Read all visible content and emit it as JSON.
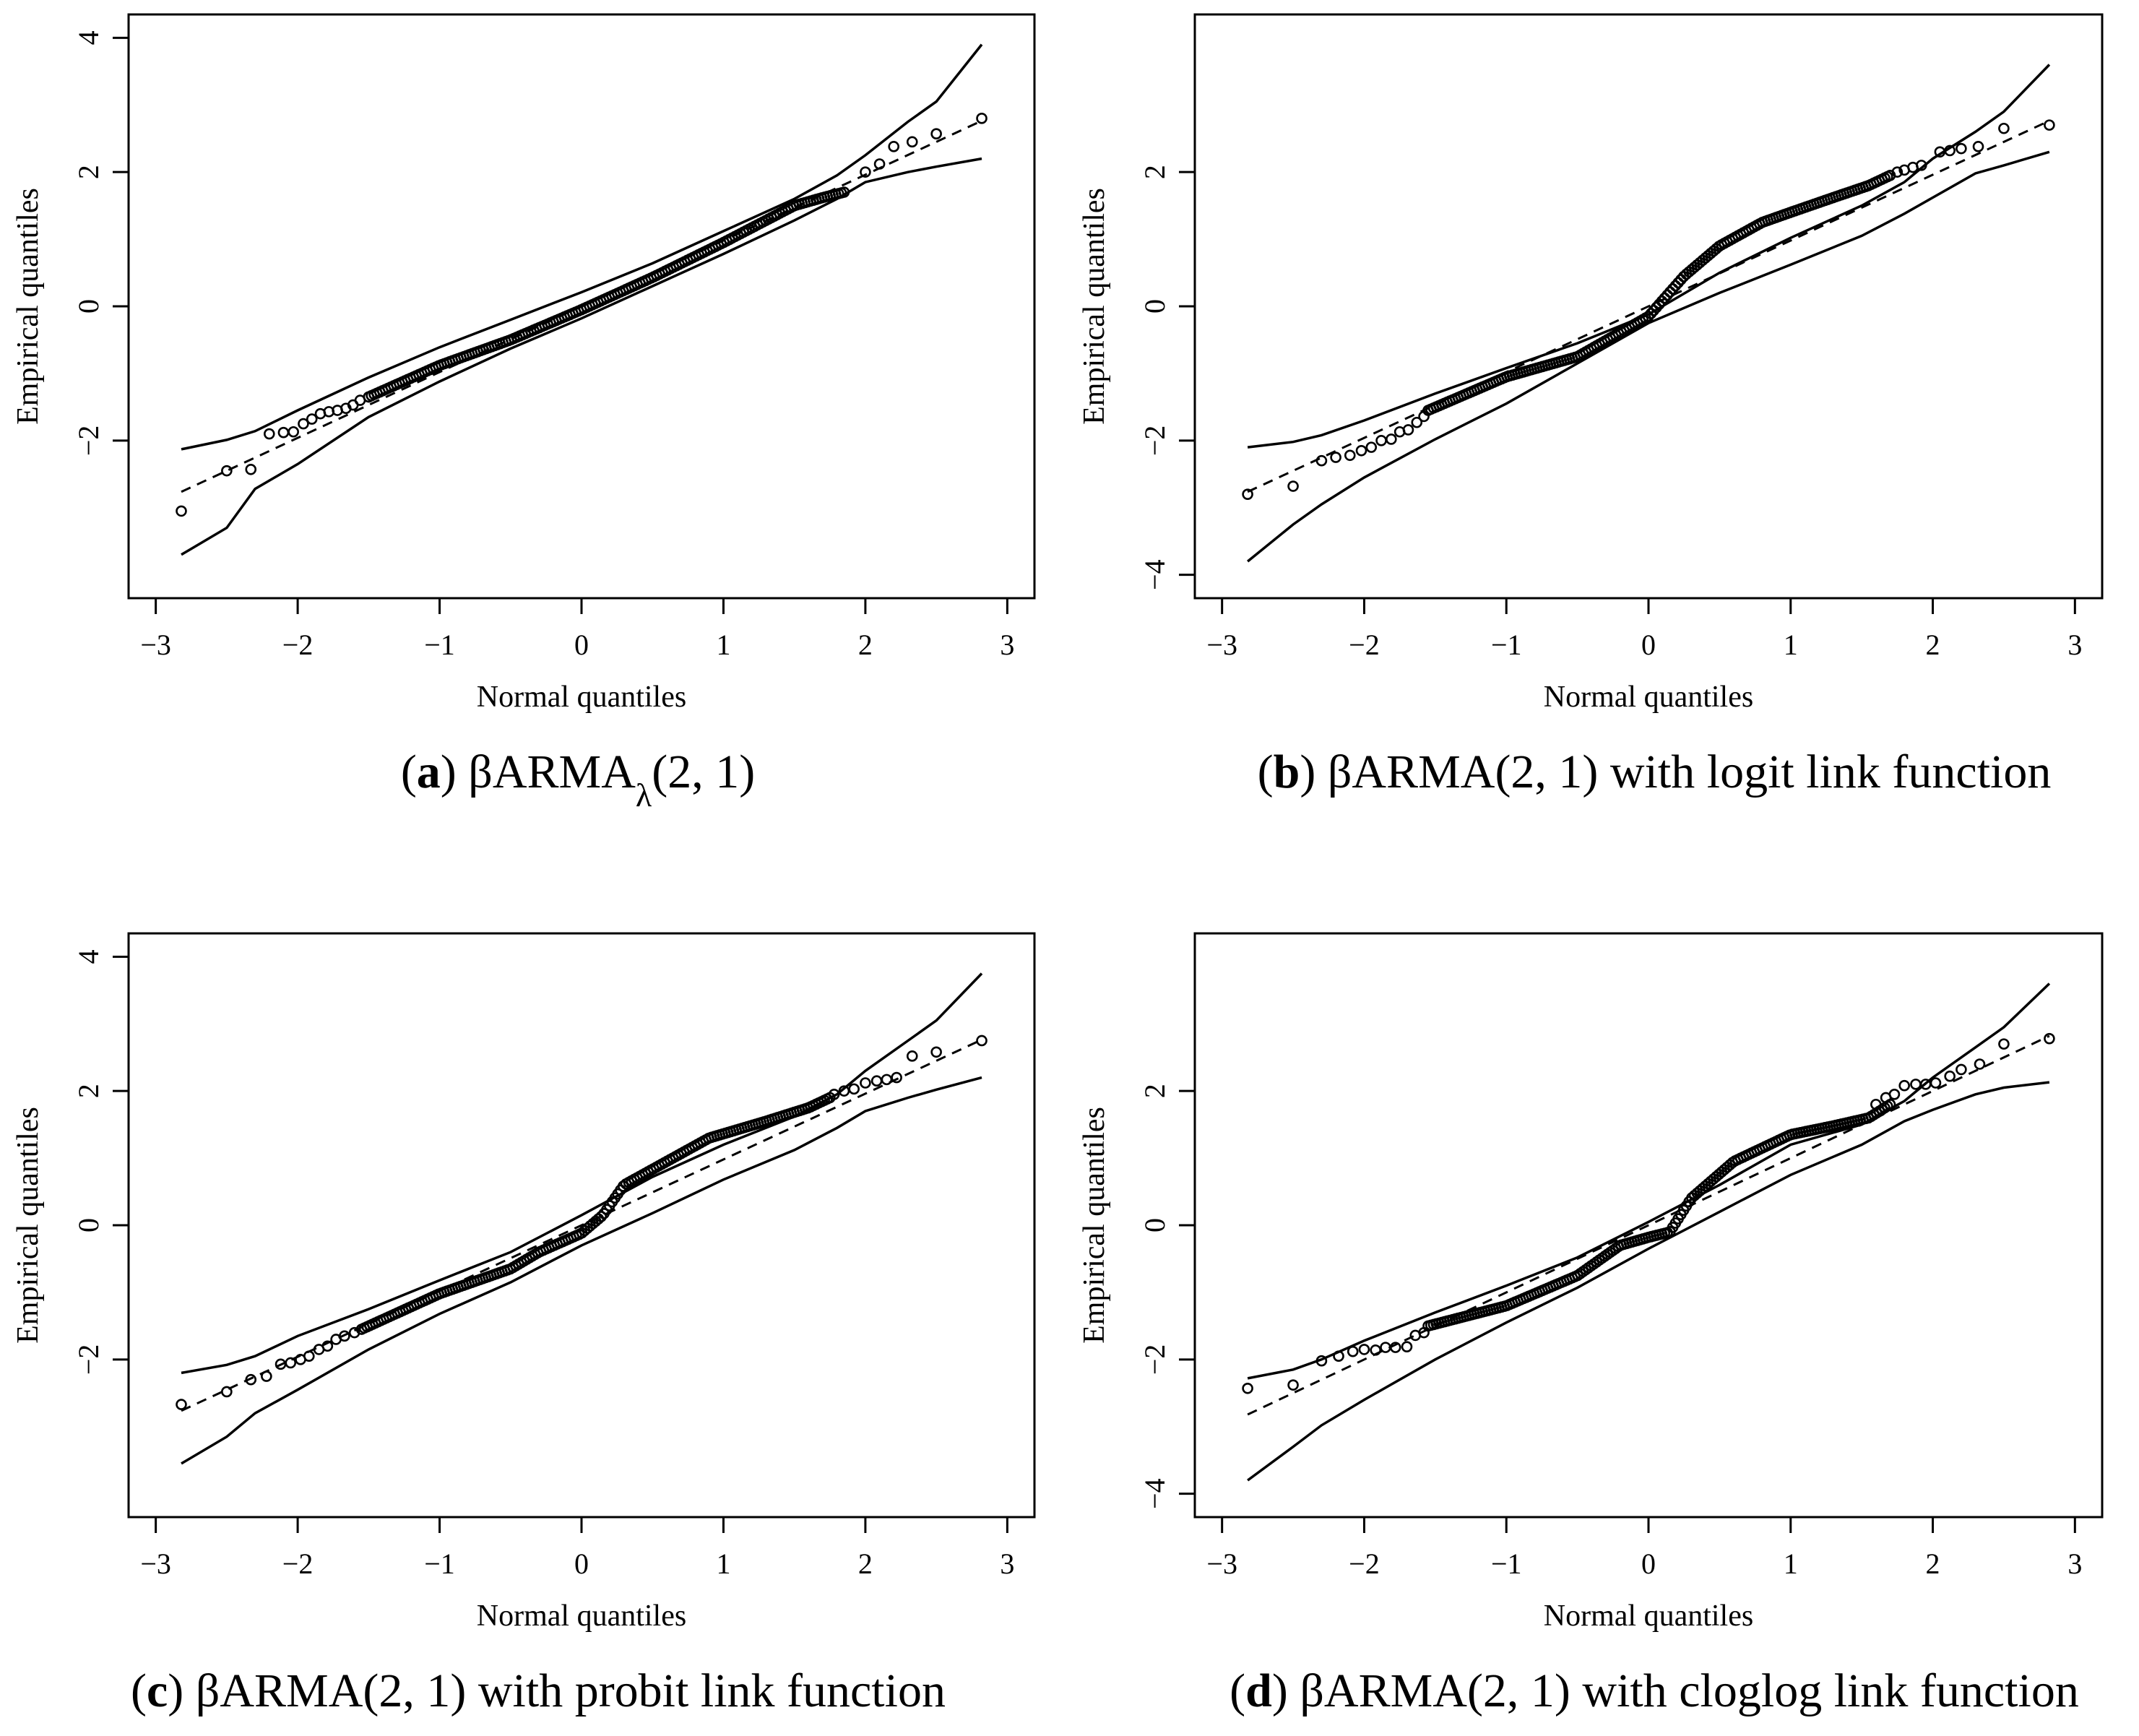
{
  "chart_data": [
    {
      "type": "scatter",
      "panel": "a",
      "caption_letter": "a",
      "caption_text": "βARMAλ(2, 1)",
      "caption_base": "βARMA",
      "caption_sub": "λ",
      "caption_args": "(2, 1)",
      "caption_suffix": "",
      "xlabel": "Normal quantiles",
      "ylabel": "Empirical quantiles",
      "xlim": [
        -3,
        3
      ],
      "ylim": [
        -4,
        4
      ],
      "xticks": [
        "−3",
        "−2",
        "−1",
        "0",
        "1",
        "2",
        "3"
      ],
      "yticks": [
        "−2",
        "0",
        "2",
        "4"
      ],
      "ytick_values": [
        -2,
        0,
        2,
        4
      ],
      "reference_line": {
        "intercept": 0.0,
        "slope": 0.98
      },
      "envelope_upper": [
        [
          -2.82,
          -2.13
        ],
        [
          -2.5,
          -1.99
        ],
        [
          -2.3,
          -1.86
        ],
        [
          -2.0,
          -1.55
        ],
        [
          -1.5,
          -1.06
        ],
        [
          -1.0,
          -0.61
        ],
        [
          -0.5,
          -0.2
        ],
        [
          0.0,
          0.21
        ],
        [
          0.5,
          0.64
        ],
        [
          1.0,
          1.12
        ],
        [
          1.5,
          1.6
        ],
        [
          1.8,
          1.95
        ],
        [
          2.0,
          2.25
        ],
        [
          2.3,
          2.75
        ],
        [
          2.5,
          3.05
        ],
        [
          2.82,
          3.9
        ]
      ],
      "envelope_lower": [
        [
          -2.82,
          -3.7
        ],
        [
          -2.5,
          -3.3
        ],
        [
          -2.3,
          -2.72
        ],
        [
          -2.0,
          -2.35
        ],
        [
          -1.5,
          -1.65
        ],
        [
          -1.0,
          -1.12
        ],
        [
          -0.5,
          -0.63
        ],
        [
          0.0,
          -0.18
        ],
        [
          0.5,
          0.3
        ],
        [
          1.0,
          0.78
        ],
        [
          1.5,
          1.28
        ],
        [
          1.8,
          1.6
        ],
        [
          2.0,
          1.85
        ],
        [
          2.3,
          2.0
        ],
        [
          2.5,
          2.08
        ],
        [
          2.82,
          2.2
        ]
      ],
      "empirical_trend": [
        [
          -1.5,
          -1.35
        ],
        [
          -1.0,
          -0.88
        ],
        [
          -0.5,
          -0.5
        ],
        [
          0.0,
          -0.05
        ],
        [
          0.5,
          0.43
        ],
        [
          1.0,
          0.95
        ],
        [
          1.3,
          1.28
        ],
        [
          1.5,
          1.5
        ],
        [
          1.7,
          1.62
        ],
        [
          1.85,
          1.7
        ]
      ],
      "points": [
        [
          -2.82,
          -3.05
        ],
        [
          -2.5,
          -2.45
        ],
        [
          -2.33,
          -2.43
        ],
        [
          -2.2,
          -1.9
        ],
        [
          -2.1,
          -1.88
        ],
        [
          -2.03,
          -1.87
        ],
        [
          -1.96,
          -1.75
        ],
        [
          -1.9,
          -1.68
        ],
        [
          -1.84,
          -1.6
        ],
        [
          -1.78,
          -1.57
        ],
        [
          -1.72,
          -1.55
        ],
        [
          -1.66,
          -1.52
        ],
        [
          -1.61,
          -1.47
        ],
        [
          -1.56,
          -1.4
        ],
        [
          -1.5,
          -1.35
        ],
        [
          2.0,
          2.0
        ],
        [
          2.1,
          2.12
        ],
        [
          2.2,
          2.38
        ],
        [
          2.33,
          2.45
        ],
        [
          2.5,
          2.57
        ],
        [
          2.82,
          2.8
        ]
      ]
    },
    {
      "type": "scatter",
      "panel": "b",
      "caption_letter": "b",
      "caption_text": "βARMA(2, 1) with logit link function",
      "caption_base": "βARMA",
      "caption_sub": "",
      "caption_args": "(2, 1)",
      "caption_suffix": " with logit link function",
      "xlabel": "Normal quantiles",
      "ylabel": "Empirical quantiles",
      "xlim": [
        -3,
        3
      ],
      "ylim": [
        -4,
        4
      ],
      "xticks": [
        "−3",
        "−2",
        "−1",
        "0",
        "1",
        "2",
        "3"
      ],
      "yticks": [
        "−4",
        "−2",
        "0",
        "2"
      ],
      "ytick_values": [
        -4,
        -2,
        0,
        2
      ],
      "reference_line": {
        "intercept": 0.0,
        "slope": 0.98
      },
      "envelope_upper": [
        [
          -2.82,
          -2.1
        ],
        [
          -2.5,
          -2.02
        ],
        [
          -2.3,
          -1.92
        ],
        [
          -2.0,
          -1.7
        ],
        [
          -1.5,
          -1.3
        ],
        [
          -1.0,
          -0.92
        ],
        [
          -0.5,
          -0.55
        ],
        [
          0.0,
          -0.12
        ],
        [
          0.5,
          0.5
        ],
        [
          1.0,
          1.02
        ],
        [
          1.5,
          1.5
        ],
        [
          1.8,
          1.85
        ],
        [
          2.0,
          2.2
        ],
        [
          2.3,
          2.6
        ],
        [
          2.5,
          2.9
        ],
        [
          2.82,
          3.6
        ]
      ],
      "envelope_lower": [
        [
          -2.82,
          -3.8
        ],
        [
          -2.5,
          -3.25
        ],
        [
          -2.3,
          -2.95
        ],
        [
          -2.0,
          -2.55
        ],
        [
          -1.5,
          -1.98
        ],
        [
          -1.0,
          -1.45
        ],
        [
          -0.5,
          -0.85
        ],
        [
          0.0,
          -0.25
        ],
        [
          0.5,
          0.2
        ],
        [
          1.0,
          0.62
        ],
        [
          1.5,
          1.05
        ],
        [
          1.8,
          1.38
        ],
        [
          2.0,
          1.62
        ],
        [
          2.3,
          1.98
        ],
        [
          2.5,
          2.1
        ],
        [
          2.82,
          2.3
        ]
      ],
      "empirical_trend": [
        [
          -1.55,
          -1.55
        ],
        [
          -1.0,
          -1.05
        ],
        [
          -0.5,
          -0.75
        ],
        [
          0.0,
          -0.15
        ],
        [
          0.25,
          0.45
        ],
        [
          0.5,
          0.9
        ],
        [
          0.8,
          1.25
        ],
        [
          1.0,
          1.4
        ],
        [
          1.3,
          1.62
        ],
        [
          1.55,
          1.8
        ],
        [
          1.7,
          1.95
        ]
      ],
      "points": [
        [
          -2.82,
          -2.8
        ],
        [
          -2.5,
          -2.68
        ],
        [
          -2.3,
          -2.3
        ],
        [
          -2.2,
          -2.25
        ],
        [
          -2.1,
          -2.22
        ],
        [
          -2.02,
          -2.15
        ],
        [
          -1.95,
          -2.1
        ],
        [
          -1.88,
          -2.0
        ],
        [
          -1.81,
          -1.98
        ],
        [
          -1.75,
          -1.87
        ],
        [
          -1.69,
          -1.84
        ],
        [
          -1.63,
          -1.73
        ],
        [
          -1.58,
          -1.64
        ],
        [
          1.75,
          2.0
        ],
        [
          1.8,
          2.03
        ],
        [
          1.86,
          2.07
        ],
        [
          1.92,
          2.1
        ],
        [
          2.05,
          2.3
        ],
        [
          2.12,
          2.32
        ],
        [
          2.2,
          2.35
        ],
        [
          2.32,
          2.38
        ],
        [
          2.5,
          2.65
        ],
        [
          2.82,
          2.7
        ]
      ]
    },
    {
      "type": "scatter",
      "panel": "c",
      "caption_letter": "c",
      "caption_text": "βARMA(2, 1) with probit link function",
      "caption_base": "βARMA",
      "caption_sub": "",
      "caption_args": "(2, 1)",
      "caption_suffix": " with probit link function",
      "xlabel": "Normal quantiles",
      "ylabel": "Empirical quantiles",
      "xlim": [
        -3,
        3
      ],
      "ylim": [
        -4,
        4
      ],
      "xticks": [
        "−3",
        "−2",
        "−1",
        "0",
        "1",
        "2",
        "3"
      ],
      "yticks": [
        "−2",
        "0",
        "2",
        "4"
      ],
      "ytick_values": [
        -2,
        0,
        2,
        4
      ],
      "reference_line": {
        "intercept": 0.0,
        "slope": 0.98
      },
      "envelope_upper": [
        [
          -2.82,
          -2.2
        ],
        [
          -2.5,
          -2.08
        ],
        [
          -2.3,
          -1.95
        ],
        [
          -2.0,
          -1.65
        ],
        [
          -1.5,
          -1.25
        ],
        [
          -1.0,
          -0.82
        ],
        [
          -0.5,
          -0.4
        ],
        [
          0.0,
          0.15
        ],
        [
          0.5,
          0.72
        ],
        [
          1.0,
          1.2
        ],
        [
          1.5,
          1.62
        ],
        [
          1.8,
          1.95
        ],
        [
          2.0,
          2.3
        ],
        [
          2.3,
          2.75
        ],
        [
          2.5,
          3.05
        ],
        [
          2.82,
          3.75
        ]
      ],
      "envelope_lower": [
        [
          -2.82,
          -3.55
        ],
        [
          -2.5,
          -3.15
        ],
        [
          -2.3,
          -2.8
        ],
        [
          -2.0,
          -2.45
        ],
        [
          -1.5,
          -1.85
        ],
        [
          -1.0,
          -1.32
        ],
        [
          -0.5,
          -0.85
        ],
        [
          0.0,
          -0.3
        ],
        [
          0.5,
          0.18
        ],
        [
          1.0,
          0.68
        ],
        [
          1.5,
          1.12
        ],
        [
          1.8,
          1.45
        ],
        [
          2.0,
          1.7
        ],
        [
          2.3,
          1.9
        ],
        [
          2.5,
          2.02
        ],
        [
          2.82,
          2.2
        ]
      ],
      "empirical_trend": [
        [
          -1.55,
          -1.55
        ],
        [
          -1.0,
          -1.02
        ],
        [
          -0.5,
          -0.65
        ],
        [
          -0.3,
          -0.4
        ],
        [
          0.0,
          -0.12
        ],
        [
          0.15,
          0.15
        ],
        [
          0.3,
          0.6
        ],
        [
          0.6,
          0.95
        ],
        [
          0.9,
          1.3
        ],
        [
          1.3,
          1.55
        ],
        [
          1.6,
          1.75
        ],
        [
          1.75,
          1.9
        ]
      ],
      "points": [
        [
          -2.82,
          -2.67
        ],
        [
          -2.5,
          -2.48
        ],
        [
          -2.33,
          -2.3
        ],
        [
          -2.22,
          -2.25
        ],
        [
          -2.12,
          -2.07
        ],
        [
          -2.05,
          -2.05
        ],
        [
          -1.98,
          -2.0
        ],
        [
          -1.92,
          -1.95
        ],
        [
          -1.85,
          -1.85
        ],
        [
          -1.79,
          -1.8
        ],
        [
          -1.73,
          -1.7
        ],
        [
          -1.67,
          -1.65
        ],
        [
          -1.6,
          -1.6
        ],
        [
          1.78,
          1.95
        ],
        [
          1.85,
          2.0
        ],
        [
          1.92,
          2.03
        ],
        [
          2.0,
          2.12
        ],
        [
          2.08,
          2.15
        ],
        [
          2.15,
          2.17
        ],
        [
          2.22,
          2.2
        ],
        [
          2.33,
          2.52
        ],
        [
          2.5,
          2.58
        ],
        [
          2.82,
          2.75
        ]
      ]
    },
    {
      "type": "scatter",
      "panel": "d",
      "caption_letter": "d",
      "caption_text": "βARMA(2, 1) with cloglog link function",
      "caption_base": "βARMA",
      "caption_sub": "",
      "caption_args": "(2, 1)",
      "caption_suffix": " with cloglog link function",
      "xlabel": "Normal quantiles",
      "ylabel": "Empirical quantiles",
      "xlim": [
        -3,
        3
      ],
      "ylim": [
        -4,
        4
      ],
      "xticks": [
        "−3",
        "−2",
        "−1",
        "0",
        "1",
        "2",
        "3"
      ],
      "yticks": [
        "−4",
        "−2",
        "0",
        "2"
      ],
      "ytick_values": [
        -4,
        -2,
        0,
        2
      ],
      "reference_line": {
        "intercept": 0.0,
        "slope": 1.0
      },
      "envelope_upper": [
        [
          -2.82,
          -2.28
        ],
        [
          -2.5,
          -2.15
        ],
        [
          -2.3,
          -2.0
        ],
        [
          -2.0,
          -1.72
        ],
        [
          -1.5,
          -1.3
        ],
        [
          -1.0,
          -0.9
        ],
        [
          -0.5,
          -0.48
        ],
        [
          0.0,
          0.05
        ],
        [
          0.5,
          0.6
        ],
        [
          1.0,
          1.2
        ],
        [
          1.5,
          1.5
        ],
        [
          1.8,
          1.85
        ],
        [
          2.0,
          2.2
        ],
        [
          2.3,
          2.65
        ],
        [
          2.5,
          2.95
        ],
        [
          2.82,
          3.6
        ]
      ],
      "envelope_lower": [
        [
          -2.82,
          -3.8
        ],
        [
          -2.5,
          -3.3
        ],
        [
          -2.3,
          -2.98
        ],
        [
          -2.0,
          -2.6
        ],
        [
          -1.5,
          -2.0
        ],
        [
          -1.0,
          -1.45
        ],
        [
          -0.5,
          -0.93
        ],
        [
          0.0,
          -0.35
        ],
        [
          0.5,
          0.2
        ],
        [
          1.0,
          0.75
        ],
        [
          1.5,
          1.2
        ],
        [
          1.8,
          1.55
        ],
        [
          2.0,
          1.72
        ],
        [
          2.3,
          1.95
        ],
        [
          2.5,
          2.05
        ],
        [
          2.82,
          2.13
        ]
      ],
      "empirical_trend": [
        [
          -1.55,
          -1.5
        ],
        [
          -1.0,
          -1.2
        ],
        [
          -0.5,
          -0.75
        ],
        [
          -0.2,
          -0.3
        ],
        [
          0.0,
          -0.18
        ],
        [
          0.15,
          -0.1
        ],
        [
          0.3,
          0.4
        ],
        [
          0.6,
          0.95
        ],
        [
          1.0,
          1.35
        ],
        [
          1.3,
          1.48
        ],
        [
          1.55,
          1.6
        ],
        [
          1.7,
          1.8
        ]
      ],
      "points": [
        [
          -2.82,
          -2.43
        ],
        [
          -2.5,
          -2.38
        ],
        [
          -2.3,
          -2.02
        ],
        [
          -2.18,
          -1.95
        ],
        [
          -2.08,
          -1.88
        ],
        [
          -2.0,
          -1.85
        ],
        [
          -1.92,
          -1.86
        ],
        [
          -1.85,
          -1.82
        ],
        [
          -1.78,
          -1.82
        ],
        [
          -1.7,
          -1.81
        ],
        [
          -1.64,
          -1.64
        ],
        [
          -1.58,
          -1.6
        ],
        [
          1.6,
          1.8
        ],
        [
          1.67,
          1.9
        ],
        [
          1.73,
          1.95
        ],
        [
          1.8,
          2.08
        ],
        [
          1.88,
          2.1
        ],
        [
          1.95,
          2.1
        ],
        [
          2.02,
          2.12
        ],
        [
          2.12,
          2.22
        ],
        [
          2.2,
          2.32
        ],
        [
          2.33,
          2.4
        ],
        [
          2.5,
          2.7
        ],
        [
          2.82,
          2.78
        ]
      ]
    }
  ]
}
